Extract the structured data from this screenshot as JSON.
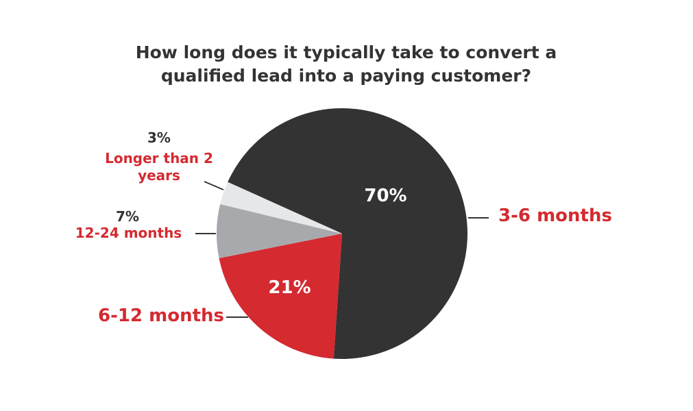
{
  "chart_data": {
    "type": "pie",
    "title": "How long does it typically take to convert a qualified lead into a paying customer?",
    "categories": [
      "3-6 months",
      "6-12 months",
      "12-24 months",
      "Longer than 2 years"
    ],
    "values": [
      70,
      21,
      7,
      3
    ],
    "value_labels": [
      "70%",
      "21%",
      "7%",
      "3%"
    ],
    "colors": [
      "#333333",
      "#d42a30",
      "#a7a9ac",
      "#e6e7e8"
    ]
  }
}
